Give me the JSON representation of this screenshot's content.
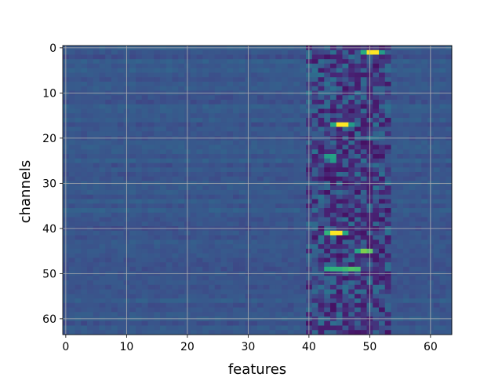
{
  "chart_data": {
    "type": "heatmap",
    "xlabel": "features",
    "ylabel": "channels",
    "x_range": [
      -0.5,
      63.5
    ],
    "y_range": [
      -0.5,
      63.5
    ],
    "y_inverted": true,
    "x_ticks": [
      0,
      10,
      20,
      30,
      40,
      50,
      60
    ],
    "y_ticks": [
      0,
      10,
      20,
      30,
      40,
      50,
      60
    ],
    "x_tick_labels": [
      "0",
      "10",
      "20",
      "30",
      "40",
      "50",
      "60"
    ],
    "y_tick_labels": [
      "0",
      "10",
      "20",
      "30",
      "40",
      "50",
      "60"
    ],
    "grid": true,
    "colormap": "viridis",
    "rows": 64,
    "cols": 64,
    "value_range": [
      0,
      1
    ],
    "baseline_value": 0.27,
    "hot_cells": [
      {
        "row": 1,
        "col": 50,
        "value": 1.0
      },
      {
        "row": 1,
        "col": 51,
        "value": 1.0
      },
      {
        "row": 1,
        "col": 49,
        "value": 0.62
      },
      {
        "row": 1,
        "col": 52,
        "value": 0.55
      },
      {
        "row": 17,
        "col": 45,
        "value": 1.0
      },
      {
        "row": 17,
        "col": 46,
        "value": 1.0
      },
      {
        "row": 17,
        "col": 44,
        "value": 0.6
      },
      {
        "row": 17,
        "col": 47,
        "value": 0.55
      },
      {
        "row": 41,
        "col": 44,
        "value": 1.0
      },
      {
        "row": 41,
        "col": 45,
        "value": 1.0
      },
      {
        "row": 41,
        "col": 43,
        "value": 0.65
      },
      {
        "row": 41,
        "col": 46,
        "value": 0.6
      },
      {
        "row": 45,
        "col": 49,
        "value": 0.8
      },
      {
        "row": 45,
        "col": 50,
        "value": 0.75
      },
      {
        "row": 45,
        "col": 48,
        "value": 0.58
      },
      {
        "row": 49,
        "col": 43,
        "value": 0.62
      },
      {
        "row": 49,
        "col": 44,
        "value": 0.65
      },
      {
        "row": 49,
        "col": 45,
        "value": 0.65
      },
      {
        "row": 49,
        "col": 46,
        "value": 0.68
      },
      {
        "row": 49,
        "col": 47,
        "value": 0.72
      },
      {
        "row": 49,
        "col": 48,
        "value": 0.7
      },
      {
        "row": 24,
        "col": 43,
        "value": 0.55
      },
      {
        "row": 24,
        "col": 44,
        "value": 0.58
      },
      {
        "row": 25,
        "col": 44,
        "value": 0.55
      }
    ]
  }
}
